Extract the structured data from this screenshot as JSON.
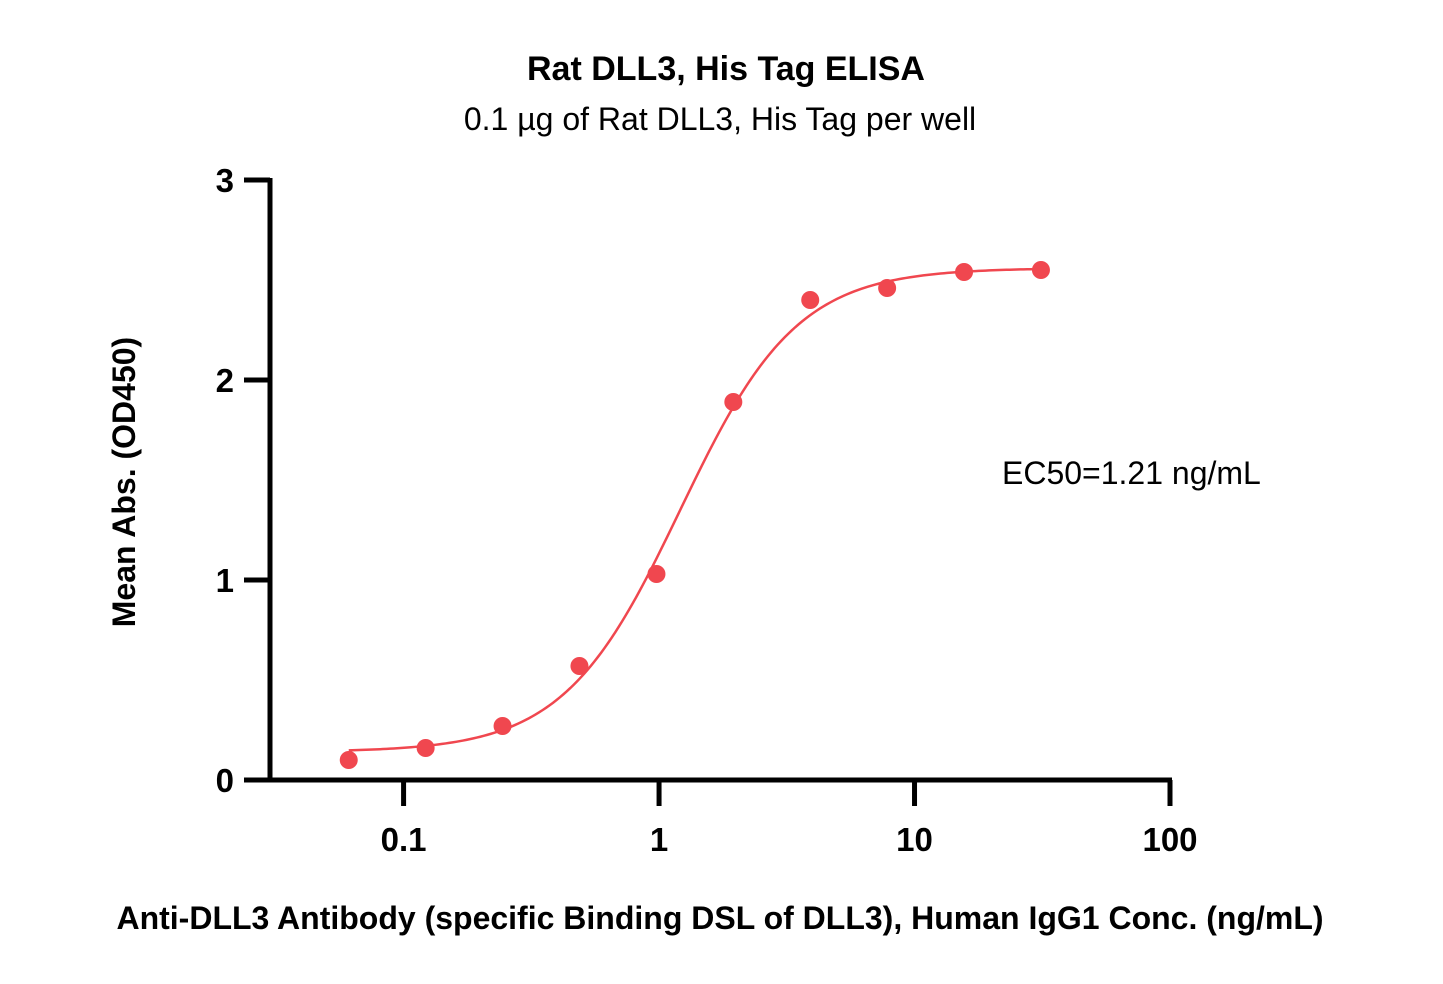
{
  "chart_data": {
    "type": "scatter",
    "title": "Rat DLL3, His Tag ELISA",
    "subtitle": "0.1 µg of Rat DLL3, His Tag per well",
    "xlabel": "Anti-DLL3 Antibody (specific Binding DSL of DLL3), Human IgG1 Conc. (ng/mL)",
    "ylabel": "Mean Abs. (OD450)",
    "x_scale": "log",
    "xlim": [
      0.03,
      100
    ],
    "ylim": [
      0,
      3
    ],
    "x_ticks": [
      "0.1",
      "1",
      "10",
      "100"
    ],
    "x_tick_values": [
      0.1,
      1,
      10,
      100
    ],
    "y_ticks": [
      "0",
      "1",
      "2",
      "3"
    ],
    "y_tick_values": [
      0,
      1,
      2,
      3
    ],
    "grid": false,
    "color": "#f0474f",
    "annotation": "EC50=1.21 ng/mL",
    "series": [
      {
        "x": [
          0.061,
          0.122,
          0.244,
          0.488,
          0.977,
          1.953,
          3.906,
          7.813,
          15.625,
          31.25
        ],
        "y": [
          0.1,
          0.16,
          0.27,
          0.57,
          1.03,
          1.89,
          2.4,
          2.46,
          2.54,
          2.55
        ]
      }
    ],
    "fit": {
      "model": "4PL",
      "bottom": 0.14,
      "top": 2.56,
      "ec50": 1.21,
      "hill": 1.9
    }
  }
}
